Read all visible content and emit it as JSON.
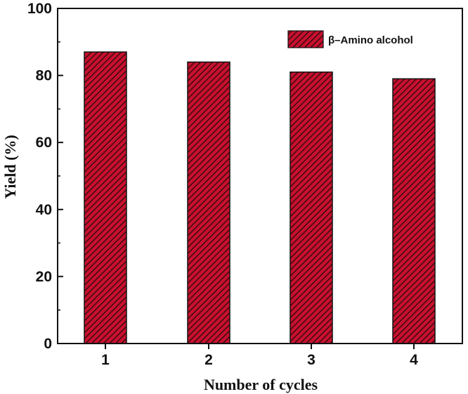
{
  "chart_data": {
    "type": "bar",
    "categories": [
      "1",
      "2",
      "3",
      "4"
    ],
    "series": [
      {
        "name": "β–Amino alcohol",
        "values": [
          87,
          84,
          81,
          79
        ],
        "color": "#c8102e",
        "hatch_color": "#1a0a0a"
      }
    ],
    "xlabel": "Number of cycles",
    "ylabel": "Yield (%)",
    "ylim": [
      0,
      100
    ],
    "yticks": [
      "0",
      "20",
      "40",
      "60",
      "80",
      "100"
    ],
    "legend_position": "top-right",
    "grid": false
  }
}
